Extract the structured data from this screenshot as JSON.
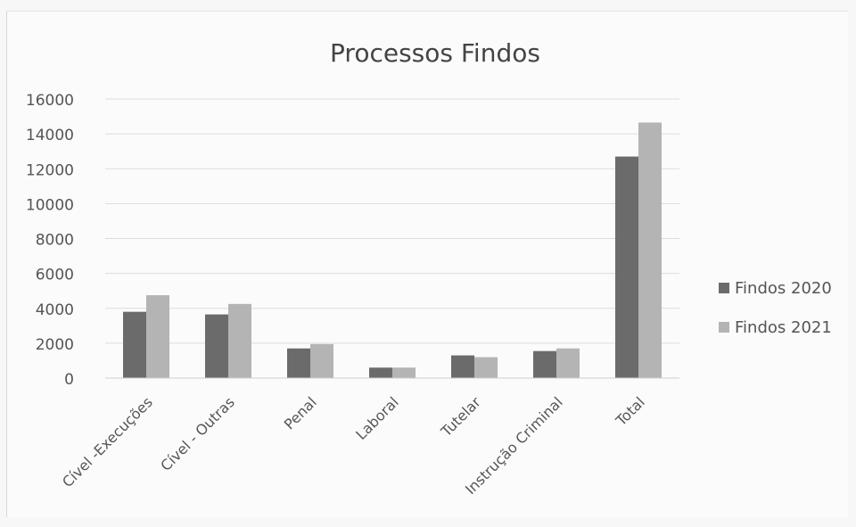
{
  "chart_data": {
    "type": "bar",
    "title": "Processos Findos",
    "xlabel": "",
    "ylabel": "",
    "categories": [
      "Cível -Execuções",
      "Cível - Outras",
      "Penal",
      "Laboral",
      "Tutelar",
      "Instrução Criminal",
      "Total"
    ],
    "series": [
      {
        "name": "Findos 2020",
        "color": "#6b6b6b",
        "values": [
          3800,
          3650,
          1700,
          600,
          1300,
          1550,
          12700
        ]
      },
      {
        "name": "Findos 2021",
        "color": "#b4b4b4",
        "values": [
          4750,
          4250,
          1950,
          600,
          1200,
          1700,
          14650
        ]
      }
    ],
    "ylim": [
      0,
      16000
    ],
    "yticks": [
      0,
      2000,
      4000,
      6000,
      8000,
      10000,
      12000,
      14000,
      16000
    ],
    "grid": true,
    "legend_position": "right"
  }
}
